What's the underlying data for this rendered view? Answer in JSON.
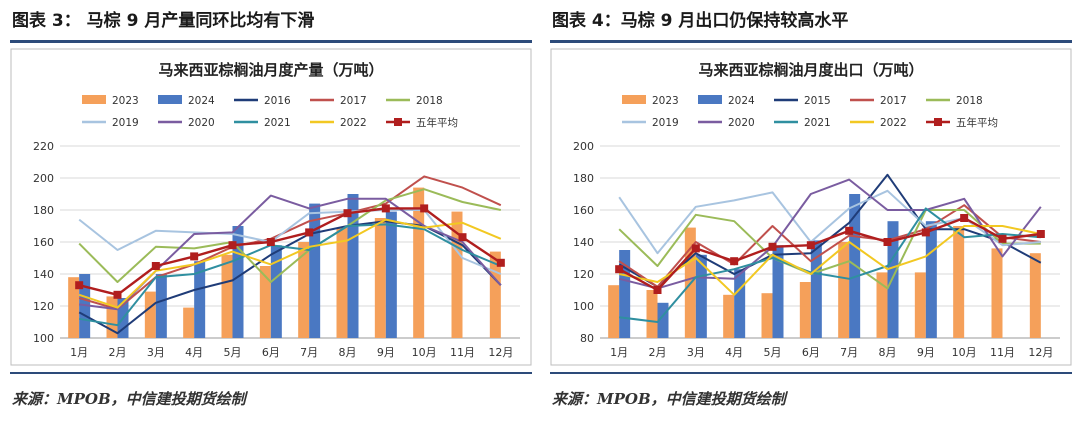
{
  "panels": [
    {
      "figure_title": "图表 3： 马棕 9 月产量同环比均有下滑",
      "source": "来源：MPOB，中信建投期货绘制",
      "chart_data": {
        "type": "bar",
        "title": "马来西亚棕榈油月度产量（万吨）",
        "xlabel": "",
        "ylabel": "",
        "categories": [
          "1月",
          "2月",
          "3月",
          "4月",
          "5月",
          "6月",
          "7月",
          "8月",
          "9月",
          "10月",
          "11月",
          "12月"
        ],
        "ylim": [
          100,
          220
        ],
        "yticks": [
          100,
          120,
          140,
          160,
          180,
          200,
          220
        ],
        "grid": true,
        "legend_position": "top",
        "series": [
          {
            "name": "2023",
            "kind": "bar",
            "color": "#f5a05a",
            "values": [
              138,
              126,
              129,
              119,
              152,
              145,
              160,
              169,
              175,
              194,
              179,
              154
            ]
          },
          {
            "name": "2024",
            "kind": "bar",
            "color": "#4a78c2",
            "values": [
              140,
              125,
              140,
              148,
              170,
              158,
              184,
              190,
              179,
              null,
              null,
              null
            ]
          },
          {
            "name": "2016",
            "kind": "line",
            "color": "#1f3c78",
            "values": [
              116,
              103,
              122,
              130,
              136,
              152,
              165,
              170,
              173,
              170,
              158,
              133
            ]
          },
          {
            "name": "2017",
            "kind": "line",
            "color": "#c0504d",
            "values": [
              125,
              118,
              138,
              146,
              157,
              162,
              173,
              178,
              184,
              201,
              194,
              183
            ]
          },
          {
            "name": "2018",
            "kind": "line",
            "color": "#9bbb59",
            "values": [
              159,
              135,
              157,
              156,
              160,
              135,
              155,
              170,
              186,
              193,
              185,
              180
            ]
          },
          {
            "name": "2019",
            "kind": "line",
            "color": "#a8c4e0",
            "values": [
              174,
              155,
              167,
              166,
              165,
              160,
              178,
              179,
              180,
              180,
              150,
              140
            ]
          },
          {
            "name": "2020",
            "kind": "line",
            "color": "#7a5ca0",
            "values": [
              121,
              118,
              142,
              165,
              166,
              189,
              181,
              187,
              187,
              170,
              160,
              133
            ]
          },
          {
            "name": "2021",
            "kind": "line",
            "color": "#2f8fa0",
            "values": [
              112,
              108,
              138,
              140,
              148,
              158,
              155,
              170,
              171,
              168,
              155,
              145
            ]
          },
          {
            "name": "2022",
            "kind": "line",
            "color": "#f2c822",
            "values": [
              127,
              119,
              142,
              146,
              154,
              146,
              157,
              161,
              174,
              169,
              172,
              162
            ]
          },
          {
            "name": "五年平均",
            "kind": "line_marker",
            "color": "#b01e1e",
            "values": [
              133,
              127,
              145,
              151,
              158,
              160,
              166,
              178,
              181,
              181,
              163,
              147
            ]
          }
        ]
      }
    },
    {
      "figure_title": "图表 4：马棕 9 月出口仍保持较高水平",
      "source": "来源：MPOB，中信建投期货绘制",
      "chart_data": {
        "type": "bar",
        "title": "马来西亚棕榈油月度出口（万吨）",
        "xlabel": "",
        "ylabel": "",
        "categories": [
          "1月",
          "2月",
          "3月",
          "4月",
          "5月",
          "6月",
          "7月",
          "8月",
          "9月",
          "10月",
          "11月",
          "12月"
        ],
        "ylim": [
          80,
          200
        ],
        "yticks": [
          80,
          100,
          120,
          140,
          160,
          180,
          200
        ],
        "grid": true,
        "legend_position": "top",
        "series": [
          {
            "name": "2023",
            "kind": "bar",
            "color": "#f5a05a",
            "values": [
              113,
              110,
              149,
              107,
              108,
              115,
              140,
              121,
              121,
              150,
              136,
              133
            ]
          },
          {
            "name": "2024",
            "kind": "bar",
            "color": "#4a78c2",
            "values": [
              135,
              102,
              132,
              123,
              138,
              141,
              170,
              153,
              153,
              null,
              null,
              null
            ]
          },
          {
            "name": "2015",
            "kind": "line",
            "color": "#1f3c78",
            "values": [
              126,
              112,
              133,
              120,
              132,
              133,
              152,
              182,
              148,
              148,
              140,
              127
            ]
          },
          {
            "name": "2017",
            "kind": "line",
            "color": "#c0504d",
            "values": [
              128,
              112,
              140,
              126,
              150,
              128,
              144,
              141,
              148,
              163,
              143,
              140
            ]
          },
          {
            "name": "2018",
            "kind": "line",
            "color": "#9bbb59",
            "values": [
              148,
              125,
              157,
              153,
              130,
              120,
              128,
              111,
              160,
              160,
              139,
              139
            ]
          },
          {
            "name": "2019",
            "kind": "line",
            "color": "#a8c4e0",
            "values": [
              168,
              133,
              162,
              166,
              171,
              140,
              161,
              172,
              150,
              155,
              138,
              140
            ]
          },
          {
            "name": "2020",
            "kind": "line",
            "color": "#7a5ca0",
            "values": [
              117,
              111,
              118,
              117,
              137,
              170,
              179,
              160,
              160,
              167,
              131,
              162
            ]
          },
          {
            "name": "2021",
            "kind": "line",
            "color": "#2f8fa0",
            "values": [
              93,
              90,
              118,
              123,
              130,
              121,
              117,
              125,
              161,
              143,
              145,
              143
            ]
          },
          {
            "name": "2022",
            "kind": "line",
            "color": "#f2c822",
            "values": [
              120,
              115,
              130,
              107,
              132,
              120,
              140,
              123,
              131,
              150,
              150,
              145
            ]
          },
          {
            "name": "五年平均",
            "kind": "line_marker",
            "color": "#b01e1e",
            "values": [
              123,
              110,
              136,
              128,
              137,
              138,
              147,
              140,
              146,
              155,
              142,
              145
            ]
          }
        ]
      }
    }
  ]
}
